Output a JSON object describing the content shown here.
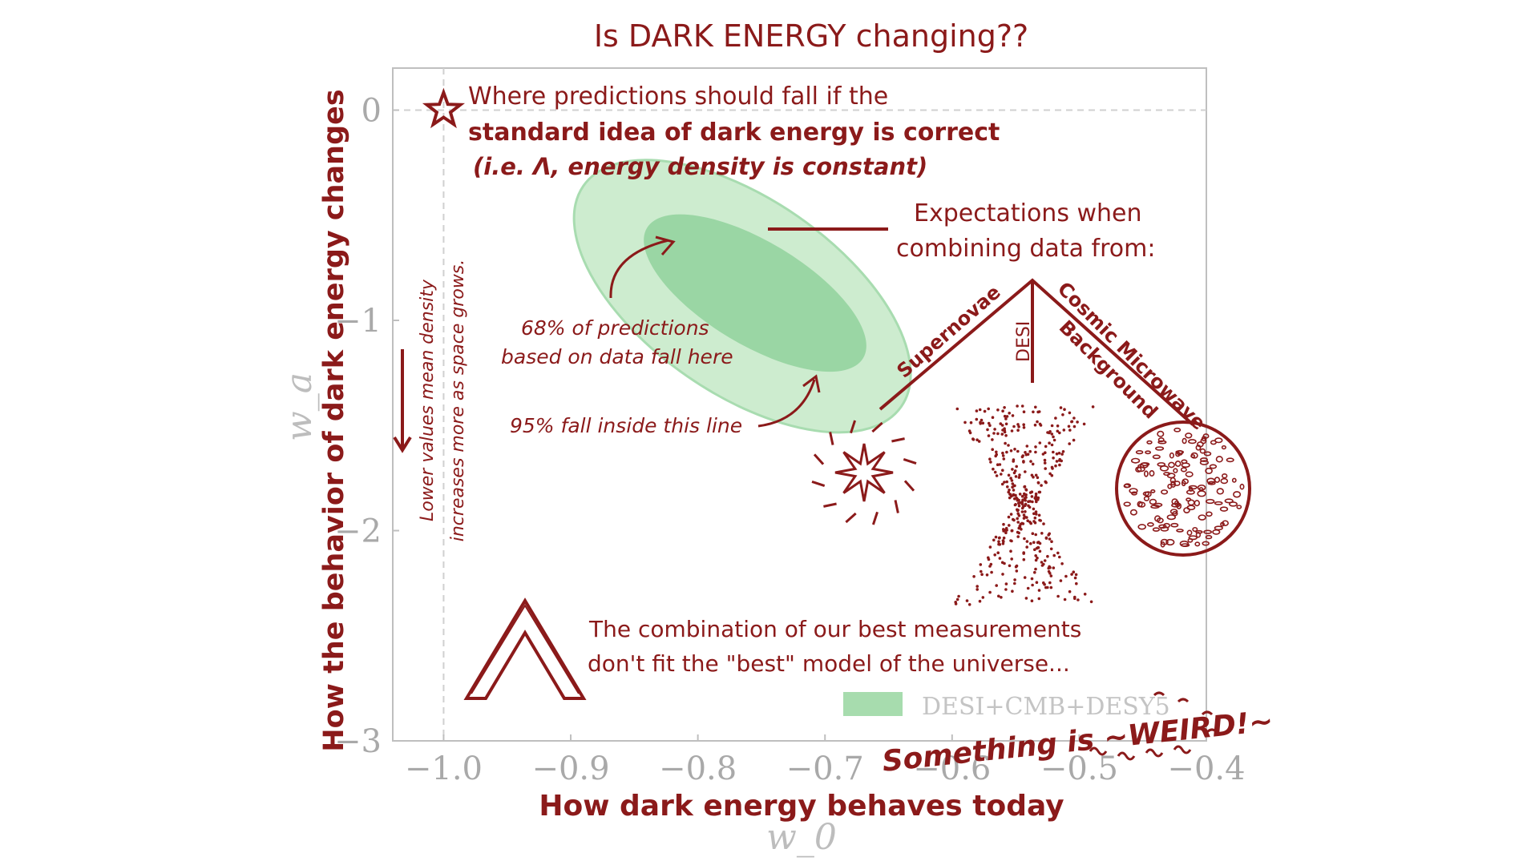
{
  "chart_data": {
    "type": "area",
    "title": "Is DARK ENERGY changing??",
    "xlabel": "w_0",
    "ylabel": "w_a",
    "xlabel_annotation": "How dark energy behaves today",
    "ylabel_annotation": "How the behavior of dark energy changes",
    "xlim": [
      -1.04,
      -0.4
    ],
    "ylim": [
      -3.0,
      0.2
    ],
    "xticks": [
      -1.0,
      -0.9,
      -0.8,
      -0.7,
      -0.6,
      -0.5,
      -0.4
    ],
    "xtick_labels": [
      "−1.0",
      "−0.9",
      "−0.8",
      "−0.7",
      "−0.6",
      "−0.5",
      "−0.4"
    ],
    "yticks": [
      0,
      -1,
      -2,
      -3
    ],
    "ytick_labels": [
      "0",
      "−1",
      "−2",
      "−3"
    ],
    "grid": false,
    "reference_point": {
      "w0": -1.0,
      "wa": 0.0
    },
    "series": [
      {
        "name": "DESI+CMB+DESY5",
        "color": "#8fd19e",
        "contour_95": {
          "center": [
            -0.77,
            -0.92
          ],
          "corner_a": [
            -0.89,
            -0.36
          ],
          "corner_b": [
            -0.64,
            -1.41
          ],
          "minor_halfwidth": 0.17
        },
        "contour_68": {
          "center": [
            -0.77,
            -0.92
          ],
          "corner_a": [
            -0.84,
            -0.56
          ],
          "corner_b": [
            -0.67,
            -1.18
          ],
          "minor_halfwidth": 0.09
        }
      }
    ],
    "legend_placement": "bottom-right",
    "annotations": {
      "lambda_note_1": "Where predictions should fall if the",
      "lambda_note_2": "standard idea of dark energy is correct",
      "lambda_note_3": "(i.e. Λ, energy density is constant)",
      "expect_1": "Expectations when",
      "expect_2": "combining data from:",
      "branch_sn": "Supernovae",
      "branch_desi": "DESI",
      "branch_cmb_1": "Cosmic Microwave",
      "branch_cmb_2": "Background",
      "note_68_1": "68% of predictions",
      "note_68_2": "based on data fall here",
      "note_95": "95% fall inside this line",
      "vertical_note_1": "Lower values mean density",
      "vertical_note_2": "increases more as space grows.",
      "combo_1": "The combination of our best measurements",
      "combo_2": "don't fit the \"best\" model of the universe...",
      "weird": "Something is ~WEIRD!~"
    }
  },
  "colors": {
    "ink": "#8b1a1a",
    "axis": "#bfbfbf",
    "tick_text": "#a9a9a9",
    "contour_outer": "#cdeccf",
    "contour_inner": "#9ad6a4"
  },
  "icons": [
    "star-icon",
    "supernova-icon",
    "desi-scatter-icon",
    "cmb-sphere-icon",
    "lambda-icon",
    "down-arrow-icon"
  ]
}
